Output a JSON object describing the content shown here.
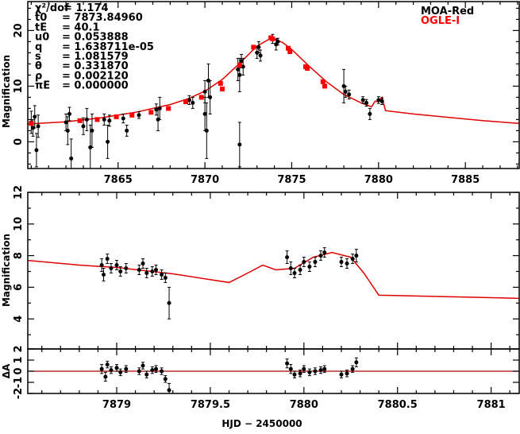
{
  "chart_data": [
    {
      "type": "scatter",
      "panel": "light-curve",
      "ylabel": "Magnification",
      "xlim": [
        7859.8,
        7888.1
      ],
      "ylim": [
        -4.8,
        25.2
      ],
      "xticks": [
        7865,
        7870,
        7875,
        7880,
        7885
      ],
      "yticks": [
        0,
        10,
        20
      ],
      "legend": {
        "placement": "top-right",
        "entries": [
          {
            "label": "MOA-Red",
            "color": "#000000"
          },
          {
            "label": "OGLE-I",
            "color": "#ff0000"
          }
        ]
      },
      "params": [
        {
          "name": "χ²/dof",
          "value": "= 1.174"
        },
        {
          "name": "t0",
          "value": "= 7873.84960"
        },
        {
          "name": "tE",
          "value": "= 40.1"
        },
        {
          "name": "u0",
          "value": "= 0.053888"
        },
        {
          "name": "q",
          "value": "= 1.638711e-05"
        },
        {
          "name": "s",
          "value": "= 1.081579"
        },
        {
          "name": "θ",
          "value": "= 0.331870"
        },
        {
          "name": "ρ",
          "value": "= 0.002120"
        },
        {
          "name": "πE",
          "value": "= 0.000000"
        }
      ],
      "model": [
        [
          7859.8,
          3.2
        ],
        [
          7862,
          3.6
        ],
        [
          7864,
          4.3
        ],
        [
          7866,
          5.3
        ],
        [
          7868,
          6.7
        ],
        [
          7869,
          7.7
        ],
        [
          7870,
          9.1
        ],
        [
          7871,
          11.2
        ],
        [
          7872,
          14.1
        ],
        [
          7873,
          17.2
        ],
        [
          7873.85,
          18.7
        ],
        [
          7874.5,
          17.8
        ],
        [
          7875,
          16.6
        ],
        [
          7876,
          13.6
        ],
        [
          7877,
          10.8
        ],
        [
          7878,
          8.5
        ],
        [
          7879,
          7.0
        ],
        [
          7879.6,
          6.3
        ],
        [
          7879.8,
          7.3
        ],
        [
          7880,
          7.2
        ],
        [
          7880.2,
          8.0
        ],
        [
          7880.4,
          5.6
        ],
        [
          7882,
          5.0
        ],
        [
          7884,
          4.4
        ],
        [
          7886,
          3.8
        ],
        [
          7888.1,
          3.3
        ]
      ],
      "moa": [
        [
          7860,
          3.5,
          2
        ],
        [
          7860.1,
          2.5,
          1.5
        ],
        [
          7860.2,
          4.5,
          2
        ],
        [
          7860.3,
          -1.5,
          3
        ],
        [
          7860.4,
          2.8,
          2
        ],
        [
          7862,
          3.5,
          1.5
        ],
        [
          7862.1,
          2,
          2.5
        ],
        [
          7862.2,
          5,
          1.2
        ],
        [
          7862.3,
          -3,
          3.5
        ],
        [
          7863,
          2.8,
          1.5
        ],
        [
          7863.2,
          4,
          2
        ],
        [
          7863.4,
          -1,
          4
        ],
        [
          7863.5,
          2,
          3
        ],
        [
          7864.2,
          4,
          1
        ],
        [
          7864.4,
          0,
          3
        ],
        [
          7864.5,
          3.8,
          1
        ],
        [
          7865.3,
          4.2,
          0.8
        ],
        [
          7865.5,
          2,
          1
        ],
        [
          7866.2,
          4.8,
          0.6
        ],
        [
          7867.2,
          5.8,
          1
        ],
        [
          7867.3,
          4,
          2
        ],
        [
          7867.4,
          6,
          2
        ],
        [
          7869.1,
          7.5,
          0.8
        ],
        [
          7869.3,
          7,
          1
        ],
        [
          7870,
          5,
          3
        ],
        [
          7870,
          9,
          2
        ],
        [
          7870.1,
          2,
          5
        ],
        [
          7870.2,
          11,
          3
        ],
        [
          7870.3,
          8,
          3
        ],
        [
          7871.9,
          13,
          2
        ],
        [
          7872,
          12,
          3
        ],
        [
          7872,
          -0.5,
          4
        ],
        [
          7872.1,
          14.5,
          1.2
        ],
        [
          7872.2,
          13.5,
          1.5
        ],
        [
          7873,
          16,
          1
        ],
        [
          7873.1,
          17,
          1
        ],
        [
          7873.2,
          15.5,
          1
        ],
        [
          7873.9,
          18.5,
          0.8
        ],
        [
          7874.1,
          17.5,
          1
        ],
        [
          7874.2,
          18,
          0.6
        ],
        [
          7878,
          10,
          3
        ],
        [
          7878.1,
          9,
          1
        ],
        [
          7878.3,
          8.5,
          0.8
        ],
        [
          7879.1,
          7.5,
          0.6
        ],
        [
          7879.3,
          7,
          0.6
        ],
        [
          7879.5,
          5,
          1
        ],
        [
          7880,
          7.5,
          0.6
        ],
        [
          7880.2,
          7.3,
          0.6
        ]
      ],
      "ogle": [
        [
          7860,
          3.3
        ],
        [
          7862.8,
          3.8
        ],
        [
          7863.8,
          4
        ],
        [
          7864.9,
          4.5
        ],
        [
          7865.8,
          4.8
        ],
        [
          7866.9,
          5.3
        ],
        [
          7867.9,
          6
        ],
        [
          7868.9,
          7.2
        ],
        [
          7869.8,
          8
        ],
        [
          7870.9,
          10.5
        ],
        [
          7871,
          9.5
        ],
        [
          7872,
          13.8
        ],
        [
          7872.8,
          17
        ],
        [
          7873.8,
          18.7
        ],
        [
          7873.9,
          18.5
        ],
        [
          7874.8,
          16.8
        ],
        [
          7874.9,
          16.2
        ],
        [
          7875.8,
          13.5
        ],
        [
          7875.9,
          13.2
        ],
        [
          7876.8,
          10.8
        ],
        [
          7876.9,
          10
        ]
      ]
    },
    {
      "type": "scatter",
      "panel": "zoom",
      "ylabel": "Magnification",
      "xlim": [
        7878.525,
        7881.15
      ],
      "ylim": [
        2.1,
        12
      ],
      "yticks": [
        4,
        6,
        8,
        10,
        12
      ],
      "model": [
        [
          7878.525,
          7.7
        ],
        [
          7878.8,
          7.4
        ],
        [
          7879,
          7.25
        ],
        [
          7879.3,
          6.85
        ],
        [
          7879.6,
          6.3
        ],
        [
          7879.7,
          6.9
        ],
        [
          7879.78,
          7.4
        ],
        [
          7879.85,
          7.1
        ],
        [
          7879.95,
          7.2
        ],
        [
          7880.05,
          7.9
        ],
        [
          7880.15,
          8.2
        ],
        [
          7880.25,
          7.9
        ],
        [
          7880.32,
          6.9
        ],
        [
          7880.4,
          5.5
        ],
        [
          7880.6,
          5.45
        ],
        [
          7881.15,
          5.3
        ]
      ],
      "moa": [
        [
          7878.92,
          7.4,
          0.4
        ],
        [
          7878.93,
          6.8,
          0.4
        ],
        [
          7878.95,
          7.8,
          0.3
        ],
        [
          7878.97,
          7.2,
          0.3
        ],
        [
          7879,
          7.4,
          0.3
        ],
        [
          7879.02,
          7.0,
          0.3
        ],
        [
          7879.05,
          7.2,
          0.3
        ],
        [
          7879.12,
          7.1,
          0.3
        ],
        [
          7879.14,
          7.5,
          0.3
        ],
        [
          7879.16,
          6.9,
          0.3
        ],
        [
          7879.19,
          7.0,
          0.3
        ],
        [
          7879.21,
          7.1,
          0.3
        ],
        [
          7879.24,
          6.8,
          0.3
        ],
        [
          7879.26,
          6.6,
          0.3
        ],
        [
          7879.28,
          5.0,
          1.0
        ],
        [
          7879.91,
          7.9,
          0.4
        ],
        [
          7879.93,
          7.2,
          0.4
        ],
        [
          7879.95,
          6.9,
          0.3
        ],
        [
          7879.98,
          7.1,
          0.3
        ],
        [
          7880.0,
          7.6,
          0.3
        ],
        [
          7880.03,
          7.3,
          0.3
        ],
        [
          7880.06,
          7.6,
          0.3
        ],
        [
          7880.09,
          8.0,
          0.3
        ],
        [
          7880.11,
          8.2,
          0.3
        ],
        [
          7880.2,
          7.6,
          0.3
        ],
        [
          7880.23,
          7.5,
          0.3
        ],
        [
          7880.26,
          7.8,
          0.3
        ],
        [
          7880.28,
          8.0,
          0.4
        ]
      ]
    },
    {
      "type": "scatter",
      "panel": "residuals",
      "ylabel": "ΔA",
      "xlabel": "HJD − 2450000",
      "xlim": [
        7878.525,
        7881.15
      ],
      "xticks": [
        7879,
        7879.5,
        7880,
        7880.5,
        7881
      ],
      "xtick_labels": [
        "7879",
        "7879.5",
        "7880",
        "7880.5",
        "7881"
      ],
      "ylim": [
        -2,
        2
      ],
      "yticks": [
        -2,
        -1,
        0,
        1,
        2
      ],
      "res": [
        [
          7878.92,
          0.2,
          0.4
        ],
        [
          7878.94,
          -0.5,
          0.4
        ],
        [
          7878.95,
          0.6,
          0.3
        ],
        [
          7878.97,
          0.1,
          0.3
        ],
        [
          7879,
          0.3,
          0.3
        ],
        [
          7879.02,
          -0.1,
          0.3
        ],
        [
          7879.05,
          0.2,
          0.3
        ],
        [
          7879.12,
          0,
          0.3
        ],
        [
          7879.14,
          0.5,
          0.3
        ],
        [
          7879.16,
          -0.3,
          0.3
        ],
        [
          7879.19,
          0.1,
          0.3
        ],
        [
          7879.21,
          0.2,
          0.3
        ],
        [
          7879.24,
          0,
          0.3
        ],
        [
          7879.26,
          -0.7,
          0.3
        ],
        [
          7879.28,
          -1.7,
          0.6
        ],
        [
          7879.91,
          0.7,
          0.4
        ],
        [
          7879.93,
          0.2,
          0.4
        ],
        [
          7879.95,
          -0.3,
          0.3
        ],
        [
          7879.98,
          -0.2,
          0.3
        ],
        [
          7880.0,
          0.2,
          0.3
        ],
        [
          7880.03,
          -0.1,
          0.3
        ],
        [
          7880.06,
          0,
          0.3
        ],
        [
          7880.09,
          0.1,
          0.3
        ],
        [
          7880.11,
          0.2,
          0.3
        ],
        [
          7880.2,
          -0.3,
          0.3
        ],
        [
          7880.23,
          -0.2,
          0.3
        ],
        [
          7880.26,
          0.2,
          0.3
        ],
        [
          7880.28,
          0.8,
          0.4
        ]
      ]
    }
  ],
  "labels": {
    "xlabel": "HJD − 2450000",
    "magnification": "Magnification",
    "dA": "ΔA"
  }
}
